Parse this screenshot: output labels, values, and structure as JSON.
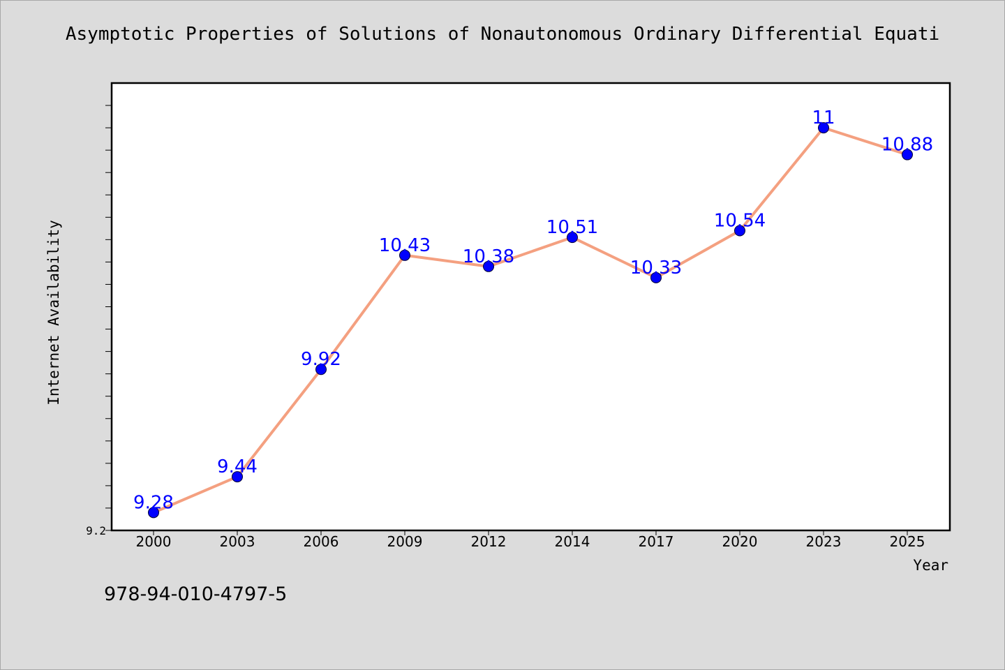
{
  "chart_data": {
    "type": "line",
    "title": "Asymptotic Properties of Solutions of Nonautonomous Ordinary Differential Equati",
    "xlabel": "Year",
    "ylabel": "Internet Availability",
    "categories": [
      "2000",
      "2003",
      "2006",
      "2009",
      "2012",
      "2014",
      "2017",
      "2020",
      "2023",
      "2025"
    ],
    "values": [
      9.28,
      9.44,
      9.92,
      10.43,
      10.38,
      10.51,
      10.33,
      10.54,
      11,
      10.88
    ],
    "data_labels": [
      "9.28",
      "9.44",
      "9.92",
      "10.43",
      "10.38",
      "10.51",
      "10.33",
      "10.54",
      "11",
      "10.88"
    ],
    "ylim": [
      9.2,
      11.2
    ],
    "ytick_labels": [
      "9.2"
    ],
    "grid": false,
    "colors": {
      "line": "#f4a080",
      "marker": "#0000ff",
      "data_label": "#0000ff",
      "background": "#dcdcdc",
      "plot_background": "#ffffff"
    }
  },
  "footnote": "978-94-010-4797-5"
}
